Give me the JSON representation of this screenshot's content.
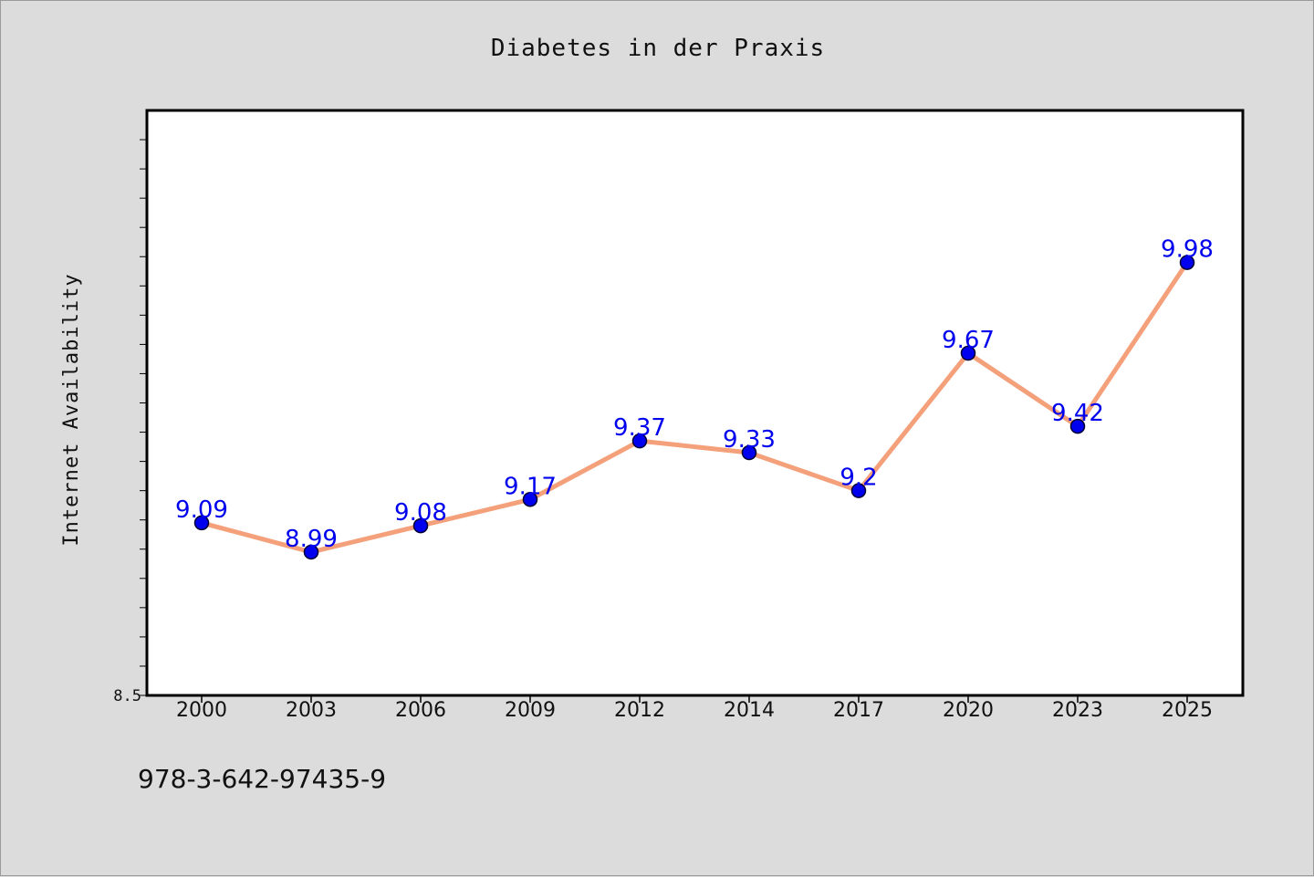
{
  "chart_data": {
    "type": "line",
    "title": "Diabetes in der Praxis",
    "xlabel": "",
    "ylabel": "Internet Availability",
    "categories": [
      "2000",
      "2003",
      "2006",
      "2009",
      "2012",
      "2014",
      "2017",
      "2020",
      "2023",
      "2025"
    ],
    "series": [
      {
        "values": [
          9.09,
          8.99,
          9.08,
          9.17,
          9.37,
          9.33,
          9.2,
          9.67,
          9.42,
          9.98
        ]
      }
    ],
    "ylim": [
      8.5,
      10.5
    ],
    "ytick_labels": [
      {
        "value": 8.5,
        "label": "8.5"
      }
    ],
    "grid": false,
    "legend": "none",
    "colors": {
      "line": "#f4a07a",
      "marker": "#0000ee",
      "marker_edge": "#000033",
      "data_label": "#0000ee",
      "plot_background": "#ffffff",
      "figure_background": "#dcdcdc"
    }
  },
  "footer": {
    "isbn": "978-3-642-97435-9"
  }
}
